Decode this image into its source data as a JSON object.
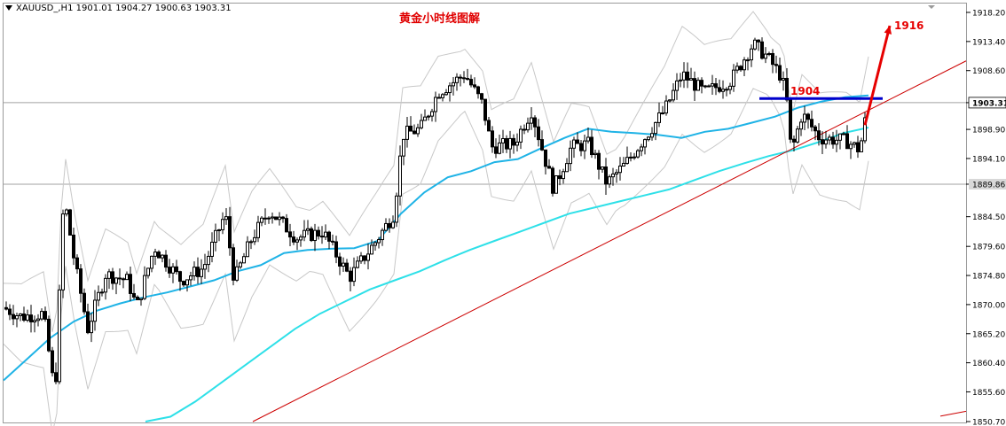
{
  "window": {
    "symbol_label": "XAUUSD_,H1",
    "ohlc": {
      "open": "1901.01",
      "high": "1904.27",
      "low": "1900.63",
      "close": "1903.31"
    }
  },
  "colors": {
    "candle": "#000000",
    "ma_fast": "#1fb3e6",
    "ma_slow": "#2ee0e8",
    "bollinger": "#c8c8c8",
    "trendline": "#cc0000",
    "resistance": "#0000cc",
    "arrow": "#e60000",
    "price_line": "#a0a0a0",
    "current_price_bg": "#ffffff"
  },
  "chart_data": {
    "type": "candlestick",
    "title": "黄金小时线图解",
    "ylim": [
      1850.7,
      1918.2
    ],
    "y_ticks": [
      "1918.20",
      "1913.40",
      "1908.60",
      "1903.31",
      "1898.90",
      "1894.10",
      "1889.86",
      "1884.50",
      "1879.60",
      "1874.80",
      "1870.00",
      "1865.20",
      "1860.40",
      "1855.60",
      "1850.70"
    ],
    "current_price": "1903.31",
    "marked_price": "1889.86",
    "grid": false,
    "series": [
      {
        "name": "",
        "kind": "ma_fast",
        "values": [
          1857.5,
          1861.0,
          1864.5,
          1867.2,
          1869.0,
          1870.2,
          1871.2,
          1872.0,
          1873.0,
          1874.0,
          1875.5,
          1876.5,
          1878.5,
          1879.0,
          1879.2,
          1879.3,
          1880.5,
          1885.0,
          1888.5,
          1891.0,
          1892.0,
          1893.5,
          1894.0,
          1895.8,
          1897.5,
          1899.0,
          1898.5,
          1898.3,
          1898.0,
          1897.5,
          1898.5,
          1899.0,
          1900.0,
          1901.0,
          1902.5,
          1903.5,
          1904.2,
          1904.5
        ]
      },
      {
        "name": "",
        "kind": "ma_slow",
        "values": [
          1850.7,
          1851.5,
          1854.0,
          1857.0,
          1860.0,
          1863.0,
          1866.0,
          1868.5,
          1870.5,
          1872.5,
          1874.0,
          1875.5,
          1877.3,
          1879.0,
          1880.5,
          1882.0,
          1883.5,
          1885.0,
          1886.0,
          1887.0,
          1888.0,
          1889.0,
          1890.5,
          1892.0,
          1893.3,
          1894.5,
          1895.5,
          1896.8,
          1898.3,
          1899.2
        ]
      }
    ],
    "annotations": [
      {
        "text": "1904",
        "kind": "resistance_level",
        "price": 1904.0
      },
      {
        "text": "1916",
        "kind": "target_arrow",
        "price": 1916.0
      }
    ]
  }
}
